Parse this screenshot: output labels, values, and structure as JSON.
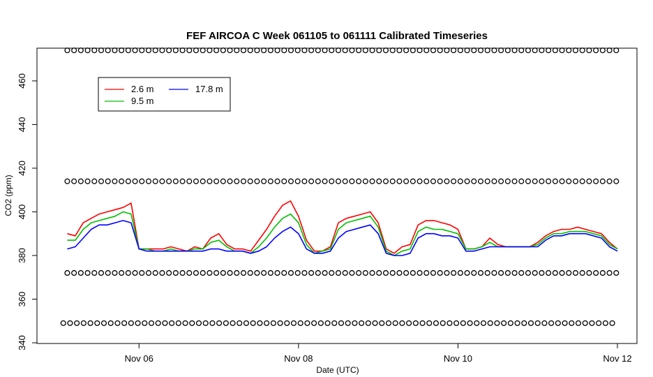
{
  "chart_data": {
    "type": "line",
    "title": "FEF AIRCOA C  Week 061105 to 061111  Calibrated Timeseries",
    "xlabel": "Date (UTC)",
    "ylabel": "CO2 (ppm)",
    "xlim": [
      0,
      7
    ],
    "ylim": [
      340,
      475
    ],
    "x_ticks": [
      {
        "x": 1,
        "label": "Nov 06"
      },
      {
        "x": 3,
        "label": "Nov 08"
      },
      {
        "x": 5,
        "label": "Nov 10"
      },
      {
        "x": 7,
        "label": "Nov 12"
      }
    ],
    "y_ticks": [
      340,
      360,
      380,
      400,
      420,
      440,
      460
    ],
    "legend": {
      "placement": "top-left",
      "entries": [
        {
          "name": "2.6 m",
          "color": "#ff0000"
        },
        {
          "name": "9.5 m",
          "color": "#00c000"
        },
        {
          "name": "17.8 m",
          "color": "#0000ff"
        }
      ]
    },
    "series": [
      {
        "name": "2.6 m",
        "color": "#ff0000",
        "points": [
          [
            0.1,
            390
          ],
          [
            0.2,
            389
          ],
          [
            0.3,
            395
          ],
          [
            0.4,
            397
          ],
          [
            0.5,
            399
          ],
          [
            0.6,
            400
          ],
          [
            0.7,
            401
          ],
          [
            0.8,
            402
          ],
          [
            0.9,
            404
          ],
          [
            1.0,
            383
          ],
          [
            1.1,
            383
          ],
          [
            1.2,
            383
          ],
          [
            1.3,
            383
          ],
          [
            1.4,
            384
          ],
          [
            1.5,
            383
          ],
          [
            1.6,
            382
          ],
          [
            1.7,
            384
          ],
          [
            1.8,
            383
          ],
          [
            1.9,
            388
          ],
          [
            2.0,
            390
          ],
          [
            2.1,
            385
          ],
          [
            2.2,
            383
          ],
          [
            2.3,
            383
          ],
          [
            2.4,
            382
          ],
          [
            2.5,
            387
          ],
          [
            2.6,
            392
          ],
          [
            2.7,
            398
          ],
          [
            2.8,
            403
          ],
          [
            2.9,
            405
          ],
          [
            3.0,
            398
          ],
          [
            3.1,
            387
          ],
          [
            3.2,
            382
          ],
          [
            3.3,
            382
          ],
          [
            3.4,
            384
          ],
          [
            3.5,
            395
          ],
          [
            3.6,
            397
          ],
          [
            3.7,
            398
          ],
          [
            3.8,
            399
          ],
          [
            3.9,
            400
          ],
          [
            4.0,
            395
          ],
          [
            4.1,
            383
          ],
          [
            4.2,
            381
          ],
          [
            4.3,
            384
          ],
          [
            4.4,
            385
          ],
          [
            4.5,
            394
          ],
          [
            4.6,
            396
          ],
          [
            4.7,
            396
          ],
          [
            4.8,
            395
          ],
          [
            4.9,
            394
          ],
          [
            5.0,
            392
          ],
          [
            5.1,
            383
          ],
          [
            5.2,
            383
          ],
          [
            5.3,
            384
          ],
          [
            5.4,
            388
          ],
          [
            5.5,
            385
          ],
          [
            5.6,
            384
          ],
          [
            5.7,
            384
          ],
          [
            5.8,
            384
          ],
          [
            5.9,
            384
          ],
          [
            6.0,
            386
          ],
          [
            6.1,
            389
          ],
          [
            6.2,
            391
          ],
          [
            6.3,
            392
          ],
          [
            6.4,
            392
          ],
          [
            6.5,
            393
          ],
          [
            6.6,
            392
          ],
          [
            6.7,
            391
          ],
          [
            6.8,
            390
          ],
          [
            6.9,
            386
          ],
          [
            7.0,
            383
          ]
        ]
      },
      {
        "name": "9.5 m",
        "color": "#00c000",
        "points": [
          [
            0.1,
            387
          ],
          [
            0.2,
            387
          ],
          [
            0.3,
            392
          ],
          [
            0.4,
            395
          ],
          [
            0.5,
            396
          ],
          [
            0.6,
            397
          ],
          [
            0.7,
            398
          ],
          [
            0.8,
            400
          ],
          [
            0.9,
            399
          ],
          [
            1.0,
            383
          ],
          [
            1.1,
            383
          ],
          [
            1.2,
            382
          ],
          [
            1.3,
            382
          ],
          [
            1.4,
            383
          ],
          [
            1.5,
            382
          ],
          [
            1.6,
            382
          ],
          [
            1.7,
            383
          ],
          [
            1.8,
            383
          ],
          [
            1.9,
            386
          ],
          [
            2.0,
            387
          ],
          [
            2.1,
            384
          ],
          [
            2.2,
            382
          ],
          [
            2.3,
            382
          ],
          [
            2.4,
            381
          ],
          [
            2.5,
            384
          ],
          [
            2.6,
            388
          ],
          [
            2.7,
            393
          ],
          [
            2.8,
            397
          ],
          [
            2.9,
            399
          ],
          [
            3.0,
            395
          ],
          [
            3.1,
            385
          ],
          [
            3.2,
            381
          ],
          [
            3.3,
            382
          ],
          [
            3.4,
            383
          ],
          [
            3.5,
            392
          ],
          [
            3.6,
            395
          ],
          [
            3.7,
            396
          ],
          [
            3.8,
            397
          ],
          [
            3.9,
            398
          ],
          [
            4.0,
            393
          ],
          [
            4.1,
            382
          ],
          [
            4.2,
            380
          ],
          [
            4.3,
            382
          ],
          [
            4.4,
            383
          ],
          [
            4.5,
            391
          ],
          [
            4.6,
            393
          ],
          [
            4.7,
            392
          ],
          [
            4.8,
            392
          ],
          [
            4.9,
            391
          ],
          [
            5.0,
            390
          ],
          [
            5.1,
            383
          ],
          [
            5.2,
            383
          ],
          [
            5.3,
            384
          ],
          [
            5.4,
            386
          ],
          [
            5.5,
            384
          ],
          [
            5.6,
            384
          ],
          [
            5.7,
            384
          ],
          [
            5.8,
            384
          ],
          [
            5.9,
            384
          ],
          [
            6.0,
            385
          ],
          [
            6.1,
            388
          ],
          [
            6.2,
            390
          ],
          [
            6.3,
            390
          ],
          [
            6.4,
            391
          ],
          [
            6.5,
            391
          ],
          [
            6.6,
            391
          ],
          [
            6.7,
            390
          ],
          [
            6.8,
            389
          ],
          [
            6.9,
            385
          ],
          [
            7.0,
            383
          ]
        ]
      },
      {
        "name": "17.8 m",
        "color": "#0000ff",
        "points": [
          [
            0.1,
            383
          ],
          [
            0.2,
            384
          ],
          [
            0.3,
            388
          ],
          [
            0.4,
            392
          ],
          [
            0.5,
            394
          ],
          [
            0.6,
            394
          ],
          [
            0.7,
            395
          ],
          [
            0.8,
            396
          ],
          [
            0.9,
            395
          ],
          [
            1.0,
            383
          ],
          [
            1.1,
            382
          ],
          [
            1.2,
            382
          ],
          [
            1.3,
            382
          ],
          [
            1.4,
            382
          ],
          [
            1.5,
            382
          ],
          [
            1.6,
            382
          ],
          [
            1.7,
            382
          ],
          [
            1.8,
            382
          ],
          [
            1.9,
            383
          ],
          [
            2.0,
            383
          ],
          [
            2.1,
            382
          ],
          [
            2.2,
            382
          ],
          [
            2.3,
            382
          ],
          [
            2.4,
            381
          ],
          [
            2.5,
            382
          ],
          [
            2.6,
            384
          ],
          [
            2.7,
            388
          ],
          [
            2.8,
            391
          ],
          [
            2.9,
            393
          ],
          [
            3.0,
            390
          ],
          [
            3.1,
            383
          ],
          [
            3.2,
            381
          ],
          [
            3.3,
            381
          ],
          [
            3.4,
            382
          ],
          [
            3.5,
            388
          ],
          [
            3.6,
            391
          ],
          [
            3.7,
            392
          ],
          [
            3.8,
            393
          ],
          [
            3.9,
            394
          ],
          [
            4.0,
            390
          ],
          [
            4.1,
            381
          ],
          [
            4.2,
            380
          ],
          [
            4.3,
            380
          ],
          [
            4.4,
            381
          ],
          [
            4.5,
            388
          ],
          [
            4.6,
            390
          ],
          [
            4.7,
            390
          ],
          [
            4.8,
            389
          ],
          [
            4.9,
            389
          ],
          [
            5.0,
            388
          ],
          [
            5.1,
            382
          ],
          [
            5.2,
            382
          ],
          [
            5.3,
            383
          ],
          [
            5.4,
            384
          ],
          [
            5.5,
            384
          ],
          [
            5.6,
            384
          ],
          [
            5.7,
            384
          ],
          [
            5.8,
            384
          ],
          [
            5.9,
            384
          ],
          [
            6.0,
            384
          ],
          [
            6.1,
            387
          ],
          [
            6.2,
            389
          ],
          [
            6.3,
            389
          ],
          [
            6.4,
            390
          ],
          [
            6.5,
            390
          ],
          [
            6.6,
            390
          ],
          [
            6.7,
            389
          ],
          [
            6.8,
            388
          ],
          [
            6.9,
            384
          ],
          [
            7.0,
            382
          ]
        ]
      },
      {
        "name": "",
        "type": "markers",
        "marker": "circle",
        "color": "#000000",
        "rows": [
          {
            "y": 474,
            "x_start": 0.1,
            "x_end": 7.0,
            "step": 0.085
          },
          {
            "y": 414,
            "x_start": 0.1,
            "x_end": 7.0,
            "step": 0.085
          },
          {
            "y": 372,
            "x_start": 0.1,
            "x_end": 7.0,
            "step": 0.085
          },
          {
            "y": 349,
            "x_start": 0.05,
            "x_end": 7.0,
            "step": 0.085
          }
        ]
      }
    ]
  }
}
